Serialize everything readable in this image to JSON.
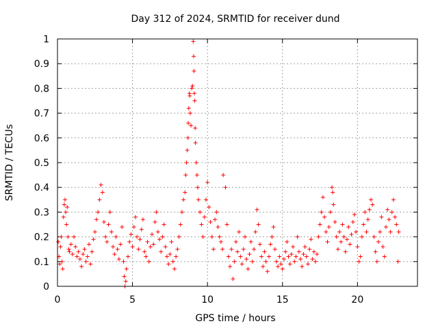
{
  "chart_data": {
    "type": "scatter",
    "title": "Day 312 of 2024, SRMTID for receiver dund",
    "xlabel": "GPS time / hours",
    "ylabel": "SRMTID / TECUs",
    "xlim": [
      0,
      24
    ],
    "ylim": [
      0,
      1
    ],
    "xticks": [
      0,
      5,
      10,
      15,
      20
    ],
    "yticks": [
      0,
      0.1,
      0.2,
      0.3,
      0.4,
      0.5,
      0.6,
      0.7,
      0.8,
      0.9,
      1
    ],
    "xtick_labels": [
      "0",
      "5",
      "10",
      "15",
      "20"
    ],
    "ytick_labels": [
      "0",
      "0.1",
      "0.2",
      "0.3",
      "0.4",
      "0.5",
      "0.6",
      "0.7",
      "0.8",
      "0.9",
      "1"
    ],
    "grid": true,
    "marker": "+",
    "color": "#ff0000",
    "series": [
      {
        "name": "SRMTID",
        "points": [
          [
            0.05,
            0.18
          ],
          [
            0.1,
            0.12
          ],
          [
            0.15,
            0.09
          ],
          [
            0.2,
            0.16
          ],
          [
            0.25,
            0.2
          ],
          [
            0.3,
            0.1
          ],
          [
            0.35,
            0.07
          ],
          [
            0.4,
            0.28
          ],
          [
            0.45,
            0.33
          ],
          [
            0.5,
            0.35
          ],
          [
            0.55,
            0.3
          ],
          [
            0.6,
            0.25
          ],
          [
            0.65,
            0.32
          ],
          [
            0.7,
            0.2
          ],
          [
            0.75,
            0.15
          ],
          [
            0.8,
            0.14
          ],
          [
            0.9,
            0.17
          ],
          [
            1.0,
            0.13
          ],
          [
            1.1,
            0.2
          ],
          [
            1.2,
            0.16
          ],
          [
            1.3,
            0.12
          ],
          [
            1.4,
            0.14
          ],
          [
            1.5,
            0.11
          ],
          [
            1.6,
            0.08
          ],
          [
            1.7,
            0.13
          ],
          [
            1.8,
            0.15
          ],
          [
            1.9,
            0.1
          ],
          [
            2.0,
            0.12
          ],
          [
            2.1,
            0.17
          ],
          [
            2.2,
            0.09
          ],
          [
            2.3,
            0.14
          ],
          [
            2.4,
            0.19
          ],
          [
            2.5,
            0.22
          ],
          [
            2.6,
            0.27
          ],
          [
            2.7,
            0.3
          ],
          [
            2.8,
            0.35
          ],
          [
            2.9,
            0.41
          ],
          [
            3.0,
            0.38
          ],
          [
            3.1,
            0.26
          ],
          [
            3.2,
            0.2
          ],
          [
            3.3,
            0.18
          ],
          [
            3.4,
            0.25
          ],
          [
            3.5,
            0.3
          ],
          [
            3.6,
            0.22
          ],
          [
            3.7,
            0.16
          ],
          [
            3.8,
            0.13
          ],
          [
            3.9,
            0.2
          ],
          [
            4.0,
            0.15
          ],
          [
            4.1,
            0.11
          ],
          [
            4.2,
            0.17
          ],
          [
            4.3,
            0.24
          ],
          [
            4.4,
            0.1
          ],
          [
            4.45,
            0.04
          ],
          [
            4.5,
            0.0
          ],
          [
            4.55,
            0.02
          ],
          [
            4.6,
            0.07
          ],
          [
            4.7,
            0.12
          ],
          [
            4.8,
            0.18
          ],
          [
            4.9,
            0.21
          ],
          [
            5.0,
            0.16
          ],
          [
            5.1,
            0.24
          ],
          [
            5.2,
            0.28
          ],
          [
            5.3,
            0.2
          ],
          [
            5.4,
            0.15
          ],
          [
            5.5,
            0.19
          ],
          [
            5.6,
            0.23
          ],
          [
            5.7,
            0.27
          ],
          [
            5.8,
            0.14
          ],
          [
            5.9,
            0.12
          ],
          [
            6.0,
            0.18
          ],
          [
            6.1,
            0.1
          ],
          [
            6.2,
            0.16
          ],
          [
            6.3,
            0.21
          ],
          [
            6.4,
            0.17
          ],
          [
            6.5,
            0.26
          ],
          [
            6.6,
            0.3
          ],
          [
            6.7,
            0.22
          ],
          [
            6.8,
            0.19
          ],
          [
            6.9,
            0.14
          ],
          [
            7.0,
            0.2
          ],
          [
            7.1,
            0.25
          ],
          [
            7.2,
            0.16
          ],
          [
            7.3,
            0.12
          ],
          [
            7.4,
            0.09
          ],
          [
            7.5,
            0.13
          ],
          [
            7.6,
            0.18
          ],
          [
            7.7,
            0.1
          ],
          [
            7.8,
            0.07
          ],
          [
            7.9,
            0.12
          ],
          [
            8.0,
            0.15
          ],
          [
            8.1,
            0.2
          ],
          [
            8.2,
            0.25
          ],
          [
            8.3,
            0.3
          ],
          [
            8.4,
            0.35
          ],
          [
            8.5,
            0.38
          ],
          [
            8.55,
            0.45
          ],
          [
            8.6,
            0.5
          ],
          [
            8.65,
            0.55
          ],
          [
            8.7,
            0.6
          ],
          [
            8.72,
            0.66
          ],
          [
            8.75,
            0.72
          ],
          [
            8.8,
            0.78
          ],
          [
            8.82,
            0.77
          ],
          [
            8.85,
            0.7
          ],
          [
            8.9,
            0.65
          ],
          [
            8.95,
            0.8
          ],
          [
            9.0,
            0.81
          ],
          [
            9.05,
            0.99
          ],
          [
            9.08,
            0.93
          ],
          [
            9.1,
            0.87
          ],
          [
            9.12,
            0.78
          ],
          [
            9.15,
            0.75
          ],
          [
            9.18,
            0.64
          ],
          [
            9.2,
            0.58
          ],
          [
            9.25,
            0.5
          ],
          [
            9.3,
            0.45
          ],
          [
            9.35,
            0.4
          ],
          [
            9.4,
            0.35
          ],
          [
            9.5,
            0.3
          ],
          [
            9.6,
            0.25
          ],
          [
            9.7,
            0.2
          ],
          [
            9.8,
            0.28
          ],
          [
            9.9,
            0.35
          ],
          [
            10.0,
            0.42
          ],
          [
            10.1,
            0.32
          ],
          [
            10.2,
            0.26
          ],
          [
            10.3,
            0.2
          ],
          [
            10.4,
            0.15
          ],
          [
            10.5,
            0.27
          ],
          [
            10.6,
            0.3
          ],
          [
            10.7,
            0.24
          ],
          [
            10.8,
            0.2
          ],
          [
            10.9,
            0.18
          ],
          [
            11.0,
            0.15
          ],
          [
            11.05,
            0.45
          ],
          [
            11.2,
            0.4
          ],
          [
            11.3,
            0.25
          ],
          [
            11.4,
            0.12
          ],
          [
            11.5,
            0.08
          ],
          [
            11.6,
            0.15
          ],
          [
            11.7,
            0.03
          ],
          [
            11.8,
            0.1
          ],
          [
            11.9,
            0.18
          ],
          [
            12.0,
            0.14
          ],
          [
            12.1,
            0.22
          ],
          [
            12.2,
            0.12
          ],
          [
            12.3,
            0.09
          ],
          [
            12.4,
            0.15
          ],
          [
            12.5,
            0.2
          ],
          [
            12.6,
            0.11
          ],
          [
            12.7,
            0.07
          ],
          [
            12.8,
            0.13
          ],
          [
            12.9,
            0.18
          ],
          [
            13.0,
            0.1
          ],
          [
            13.1,
            0.15
          ],
          [
            13.2,
            0.22
          ],
          [
            13.3,
            0.31
          ],
          [
            13.4,
            0.25
          ],
          [
            13.5,
            0.17
          ],
          [
            13.6,
            0.12
          ],
          [
            13.7,
            0.08
          ],
          [
            13.8,
            0.14
          ],
          [
            13.9,
            0.1
          ],
          [
            14.0,
            0.06
          ],
          [
            14.1,
            0.12
          ],
          [
            14.2,
            0.17
          ],
          [
            14.3,
            0.2
          ],
          [
            14.4,
            0.24
          ],
          [
            14.5,
            0.15
          ],
          [
            14.6,
            0.1
          ],
          [
            14.7,
            0.08
          ],
          [
            14.8,
            0.12
          ],
          [
            14.9,
            0.09
          ],
          [
            15.0,
            0.07
          ],
          [
            15.1,
            0.11
          ],
          [
            15.2,
            0.14
          ],
          [
            15.3,
            0.18
          ],
          [
            15.4,
            0.12
          ],
          [
            15.5,
            0.09
          ],
          [
            15.6,
            0.13
          ],
          [
            15.7,
            0.16
          ],
          [
            15.8,
            0.1
          ],
          [
            15.9,
            0.12
          ],
          [
            16.0,
            0.2
          ],
          [
            16.1,
            0.14
          ],
          [
            16.2,
            0.11
          ],
          [
            16.3,
            0.08
          ],
          [
            16.4,
            0.13
          ],
          [
            16.5,
            0.16
          ],
          [
            16.6,
            0.12
          ],
          [
            16.7,
            0.09
          ],
          [
            16.8,
            0.15
          ],
          [
            16.9,
            0.19
          ],
          [
            17.0,
            0.11
          ],
          [
            17.1,
            0.14
          ],
          [
            17.2,
            0.1
          ],
          [
            17.3,
            0.13
          ],
          [
            17.4,
            0.2
          ],
          [
            17.5,
            0.25
          ],
          [
            17.6,
            0.3
          ],
          [
            17.7,
            0.36
          ],
          [
            17.8,
            0.28
          ],
          [
            17.9,
            0.22
          ],
          [
            18.0,
            0.18
          ],
          [
            18.1,
            0.24
          ],
          [
            18.2,
            0.3
          ],
          [
            18.3,
            0.4
          ],
          [
            18.35,
            0.38
          ],
          [
            18.4,
            0.33
          ],
          [
            18.5,
            0.26
          ],
          [
            18.6,
            0.2
          ],
          [
            18.7,
            0.15
          ],
          [
            18.8,
            0.22
          ],
          [
            18.9,
            0.18
          ],
          [
            19.0,
            0.25
          ],
          [
            19.1,
            0.2
          ],
          [
            19.2,
            0.14
          ],
          [
            19.3,
            0.19
          ],
          [
            19.4,
            0.24
          ],
          [
            19.5,
            0.17
          ],
          [
            19.6,
            0.21
          ],
          [
            19.7,
            0.26
          ],
          [
            19.8,
            0.29
          ],
          [
            19.9,
            0.22
          ],
          [
            20.0,
            0.16
          ],
          [
            20.1,
            0.1
          ],
          [
            20.2,
            0.12
          ],
          [
            20.3,
            0.2
          ],
          [
            20.4,
            0.25
          ],
          [
            20.5,
            0.3
          ],
          [
            20.6,
            0.22
          ],
          [
            20.7,
            0.27
          ],
          [
            20.8,
            0.31
          ],
          [
            20.9,
            0.35
          ],
          [
            21.0,
            0.33
          ],
          [
            21.1,
            0.2
          ],
          [
            21.2,
            0.14
          ],
          [
            21.3,
            0.1
          ],
          [
            21.4,
            0.18
          ],
          [
            21.5,
            0.22
          ],
          [
            21.6,
            0.28
          ],
          [
            21.7,
            0.16
          ],
          [
            21.8,
            0.12
          ],
          [
            21.9,
            0.24
          ],
          [
            22.0,
            0.31
          ],
          [
            22.1,
            0.27
          ],
          [
            22.2,
            0.22
          ],
          [
            22.3,
            0.3
          ],
          [
            22.4,
            0.35
          ],
          [
            22.5,
            0.28
          ],
          [
            22.6,
            0.25
          ],
          [
            22.7,
            0.1
          ],
          [
            22.75,
            0.22
          ]
        ]
      }
    ]
  }
}
